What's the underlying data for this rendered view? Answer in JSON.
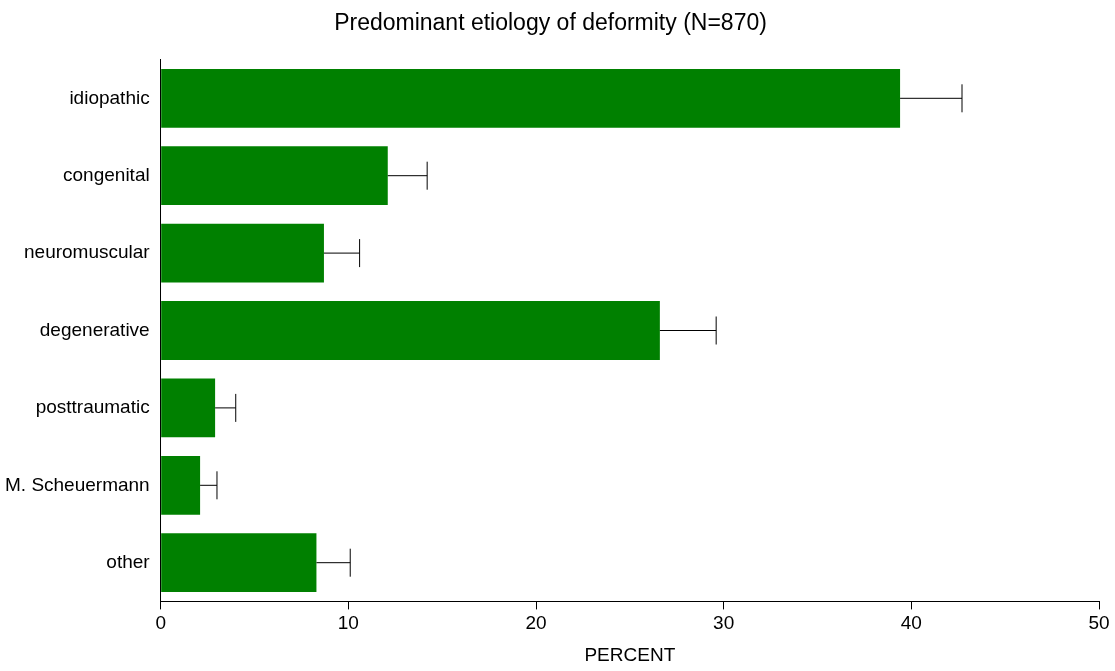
{
  "chart_data": {
    "type": "bar",
    "orientation": "horizontal",
    "title": "Predominant etiology of deformity (N=870)",
    "xlabel": "PERCENT",
    "categories": [
      "idiopathic",
      "congenital",
      "neuromuscular",
      "degenerative",
      "posttraumatic",
      "M. Scheuermann",
      "other"
    ],
    "values": [
      39.4,
      12.1,
      8.7,
      26.6,
      2.9,
      2.1,
      8.3
    ],
    "errors": [
      [
        39.4,
        42.7
      ],
      [
        12.1,
        14.2
      ],
      [
        8.7,
        10.6
      ],
      [
        26.6,
        29.6
      ],
      [
        2.9,
        4.0
      ],
      [
        2.1,
        3.0
      ],
      [
        8.3,
        10.1
      ]
    ],
    "color": "#008000",
    "xlim": [
      0,
      50
    ],
    "xticks": [
      0,
      10,
      20,
      30,
      40,
      50
    ]
  }
}
